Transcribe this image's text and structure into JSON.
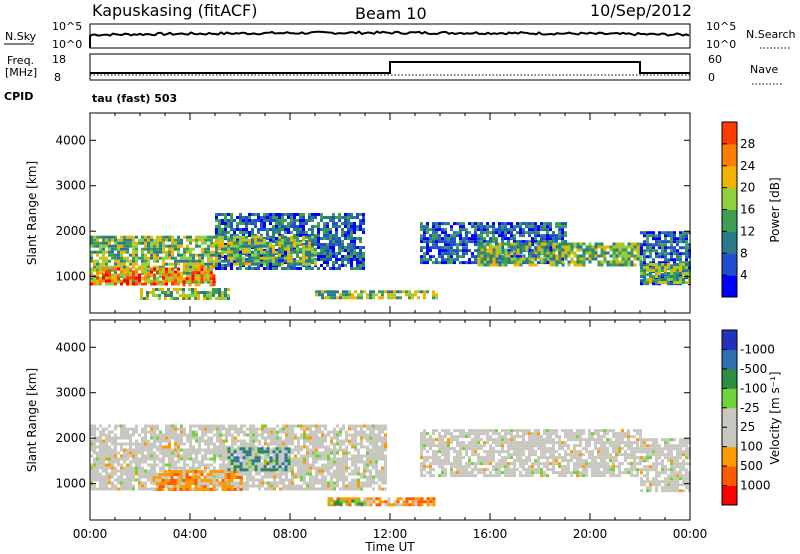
{
  "header": {
    "station": "Kapuskasing (fitACF)",
    "beam": "Beam 10",
    "date": "10/Sep/2012"
  },
  "strip_panels": {
    "nsky_label": "N.Sky",
    "nsky_ticks": [
      "10^5",
      "10^0"
    ],
    "nsearch_label": "N.Search",
    "nsearch_ticks": [
      "10^5",
      "10^0"
    ],
    "freq_label": "Freq.",
    "freq_unit": "[MHz]",
    "freq_ticks": [
      "18",
      "8"
    ],
    "nave_label": "Nave",
    "nave_ticks": [
      "60",
      "0"
    ],
    "cpid_label": "CPID",
    "cpid_value": "tau (fast) 503"
  },
  "colors": {
    "power_scale": [
      "#0000ff",
      "#1f4fd0",
      "#2a7a8c",
      "#3ca050",
      "#8ed040",
      "#f0b400",
      "#ff7d00",
      "#ff3c00",
      "#ff0000"
    ],
    "velocity_scale": [
      "#ff0000",
      "#ff5a00",
      "#ff9a00",
      "#c8c8c0",
      "#c8c8c0",
      "#6fd43c",
      "#2a8f40",
      "#2e6fb0",
      "#2030c0"
    ],
    "ground_scatter": "#c8c8c0"
  },
  "chart_data": [
    {
      "type": "heatmap",
      "name_panel": "power",
      "ylabel": "Slant Range [km]",
      "xlabel": "Time UT",
      "ylim": [
        200,
        4600
      ],
      "xlim_hours": [
        0,
        24
      ],
      "x_tick_labels": [
        "00:00",
        "04:00",
        "08:00",
        "12:00",
        "16:00",
        "20:00",
        "00:00"
      ],
      "y_tick_labels": [
        "1000",
        "2000",
        "3000",
        "4000"
      ],
      "y_tick_values": [
        1000,
        2000,
        3000,
        4000
      ],
      "colorbar": {
        "label": "Power [dB]",
        "ticks": [
          "4",
          "8",
          "12",
          "16",
          "20",
          "24",
          "28"
        ],
        "range": [
          0,
          32
        ]
      },
      "regions": [
        {
          "t0": 0.0,
          "t1": 5.0,
          "r0": 850,
          "r1": 1900,
          "level": "med"
        },
        {
          "t0": 0.0,
          "t1": 3.5,
          "r0": 850,
          "r1": 1200,
          "level": "high"
        },
        {
          "t0": 3.7,
          "t1": 5.0,
          "r0": 850,
          "r1": 1250,
          "level": "high"
        },
        {
          "t0": 2.0,
          "t1": 5.5,
          "r0": 550,
          "r1": 750,
          "level": "med"
        },
        {
          "t0": 5.0,
          "t1": 11.0,
          "r0": 1200,
          "r1": 2400,
          "level": "low"
        },
        {
          "t0": 5.0,
          "t1": 9.0,
          "r0": 1300,
          "r1": 1900,
          "level": "med"
        },
        {
          "t0": 9.0,
          "t1": 13.8,
          "r0": 520,
          "r1": 700,
          "level": "med"
        },
        {
          "t0": 13.2,
          "t1": 19.0,
          "r0": 1300,
          "r1": 2200,
          "level": "low"
        },
        {
          "t0": 15.5,
          "t1": 22.0,
          "r0": 1250,
          "r1": 1750,
          "level": "med"
        },
        {
          "t0": 22.0,
          "t1": 24.0,
          "r0": 850,
          "r1": 2000,
          "level": "low"
        },
        {
          "t0": 22.0,
          "t1": 24.0,
          "r0": 900,
          "r1": 1300,
          "level": "med"
        }
      ]
    },
    {
      "type": "heatmap",
      "name_panel": "velocity",
      "ylabel": "Slant Range [km]",
      "xlabel": "Time UT",
      "ylim": [
        200,
        4600
      ],
      "xlim_hours": [
        0,
        24
      ],
      "x_tick_labels": [
        "00:00",
        "04:00",
        "08:00",
        "12:00",
        "16:00",
        "20:00",
        "00:00"
      ],
      "y_tick_labels": [
        "1000",
        "2000",
        "3000",
        "4000"
      ],
      "y_tick_values": [
        1000,
        2000,
        3000,
        4000
      ],
      "colorbar": {
        "label": "Velocity [m s⁻¹]",
        "ticks": [
          "-1000",
          "-500",
          "-100",
          "-25",
          "25",
          "100",
          "500",
          "1000"
        ]
      },
      "regions": [
        {
          "t0": 0.0,
          "t1": 11.8,
          "r0": 850,
          "r1": 2300,
          "level": "gs"
        },
        {
          "t0": 2.5,
          "t1": 6.0,
          "r0": 850,
          "r1": 1300,
          "level": "neg"
        },
        {
          "t0": 5.5,
          "t1": 8.0,
          "r0": 1300,
          "r1": 1800,
          "level": "mixed"
        },
        {
          "t0": 9.5,
          "t1": 13.8,
          "r0": 520,
          "r1": 700,
          "level": "neg"
        },
        {
          "t0": 9.5,
          "t1": 11.0,
          "r0": 520,
          "r1": 650,
          "level": "pos"
        },
        {
          "t0": 13.2,
          "t1": 22.0,
          "r0": 1200,
          "r1": 2200,
          "level": "gs"
        },
        {
          "t0": 22.0,
          "t1": 24.0,
          "r0": 850,
          "r1": 2000,
          "level": "gs"
        }
      ]
    }
  ]
}
